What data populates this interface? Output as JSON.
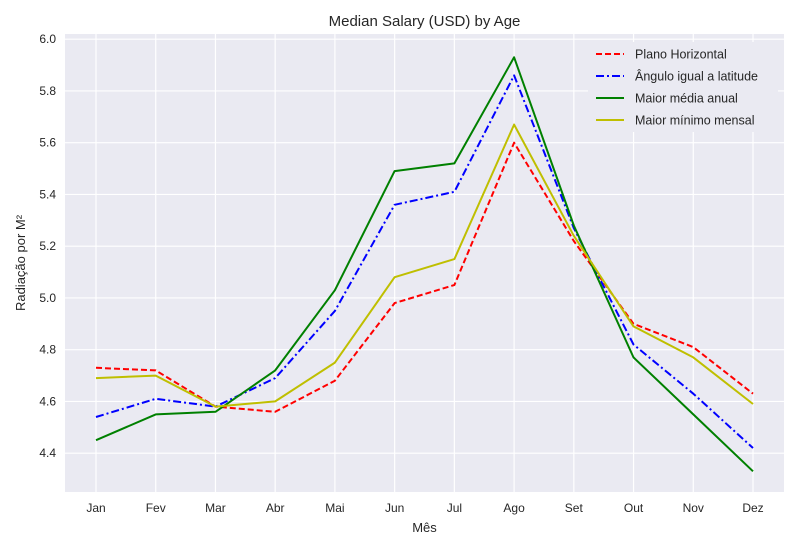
{
  "chart_data": {
    "type": "line",
    "title": "Median Salary (USD) by Age",
    "xlabel": "Mês",
    "ylabel": "Radiação por M²",
    "categories": [
      "Jan",
      "Fev",
      "Mar",
      "Abr",
      "Mai",
      "Jun",
      "Jul",
      "Ago",
      "Set",
      "Out",
      "Nov",
      "Dez"
    ],
    "ylim": [
      4.25,
      6.02
    ],
    "yticks": [
      "4.4",
      "4.6",
      "4.8",
      "5.0",
      "5.2",
      "5.4",
      "5.6",
      "5.8",
      "6.0"
    ],
    "grid": true,
    "legend_position": "top-right",
    "background_color": "#eaeaf2",
    "series": [
      {
        "name": "Plano Horizontal",
        "color": "#ff0000",
        "linestyle": "dashed",
        "values": [
          4.73,
          4.72,
          4.58,
          4.56,
          4.68,
          4.98,
          5.05,
          5.6,
          5.22,
          4.9,
          4.81,
          4.63
        ]
      },
      {
        "name": "Ângulo igual a latitude",
        "color": "#0000ff",
        "linestyle": "dashdot",
        "values": [
          4.54,
          4.61,
          4.58,
          4.69,
          4.95,
          5.36,
          5.41,
          5.86,
          5.27,
          4.82,
          4.63,
          4.42
        ]
      },
      {
        "name": "Maior média anual",
        "color": "#008000",
        "linestyle": "solid",
        "values": [
          4.45,
          4.55,
          4.56,
          4.72,
          5.03,
          5.49,
          5.52,
          5.93,
          5.28,
          4.77,
          4.55,
          4.33
        ]
      },
      {
        "name": "Maior mínimo mensal",
        "color": "#bfbf00",
        "linestyle": "solid",
        "values": [
          4.69,
          4.7,
          4.58,
          4.6,
          4.75,
          5.08,
          5.15,
          5.67,
          5.24,
          4.89,
          4.77,
          4.59
        ]
      }
    ]
  }
}
